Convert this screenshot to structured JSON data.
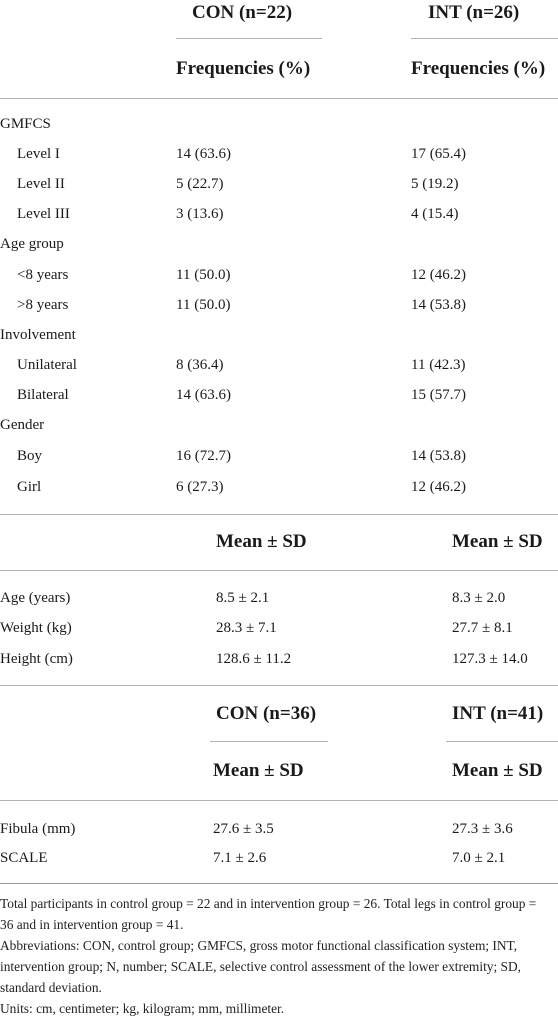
{
  "section1": {
    "col_con": "CON (n=22)",
    "col_int": "INT (n=26)",
    "sub_con": "Frequencies (%)",
    "sub_int": "Frequencies (%)",
    "rows": [
      {
        "label": "GMFCS",
        "con": "",
        "int": ""
      },
      {
        "label": "Level I",
        "con": "14 (63.6)",
        "int": "17 (65.4)"
      },
      {
        "label": "Level II",
        "con": "5 (22.7)",
        "int": "5 (19.2)"
      },
      {
        "label": "Level III",
        "con": "3 (13.6)",
        "int": "4 (15.4)"
      },
      {
        "label": "Age group",
        "con": "",
        "int": ""
      },
      {
        "label": "<8 years",
        "con": "11 (50.0)",
        "int": "12 (46.2)"
      },
      {
        "label": ">8 years",
        "con": "11 (50.0)",
        "int": "14 (53.8)"
      },
      {
        "label": "Involvement",
        "con": "",
        "int": ""
      },
      {
        "label": "Unilateral",
        "con": "8 (36.4)",
        "int": "11 (42.3)"
      },
      {
        "label": "Bilateral",
        "con": "14 (63.6)",
        "int": "15 (57.7)"
      },
      {
        "label": "Gender",
        "con": "",
        "int": ""
      },
      {
        "label": "Boy",
        "con": "16 (72.7)",
        "int": "14 (53.8)"
      },
      {
        "label": "Girl",
        "con": "6 (27.3)",
        "int": "12 (46.2)"
      }
    ]
  },
  "section2": {
    "sub_con": "Mean ± SD",
    "sub_int": "Mean ± SD",
    "rows": [
      {
        "label": "Age (years)",
        "con": "8.5 ± 2.1",
        "int": "8.3 ± 2.0"
      },
      {
        "label": "Weight (kg)",
        "con": "28.3 ± 7.1",
        "int": "27.7 ± 8.1"
      },
      {
        "label": "Height (cm)",
        "con": "128.6 ± 11.2",
        "int": "127.3 ± 14.0"
      }
    ]
  },
  "section3": {
    "col_con": "CON (n=36)",
    "col_int": "INT (n=41)",
    "sub_con": "Mean ± SD",
    "sub_int": "Mean ± SD",
    "rows": [
      {
        "label": "Fibula (mm)",
        "con": "27.6 ± 3.5",
        "int": "27.3 ± 3.6"
      },
      {
        "label": "SCALE",
        "con": "7.1 ± 2.6",
        "int": "7.0 ± 2.1"
      }
    ]
  },
  "footnotes": {
    "total": "Total participants in control group = 22 and in intervention group = 26. Total legs in control group = 36 and in intervention group = 41.",
    "abbreviations": "Abbreviations: CON, control group; GMFCS, gross motor functional classification system; INT, intervention group; N, number; SCALE, selective control assessment of the lower extremity; SD, standard deviation.",
    "units": "Units: cm, centimeter; kg, kilogram; mm, millimeter."
  }
}
